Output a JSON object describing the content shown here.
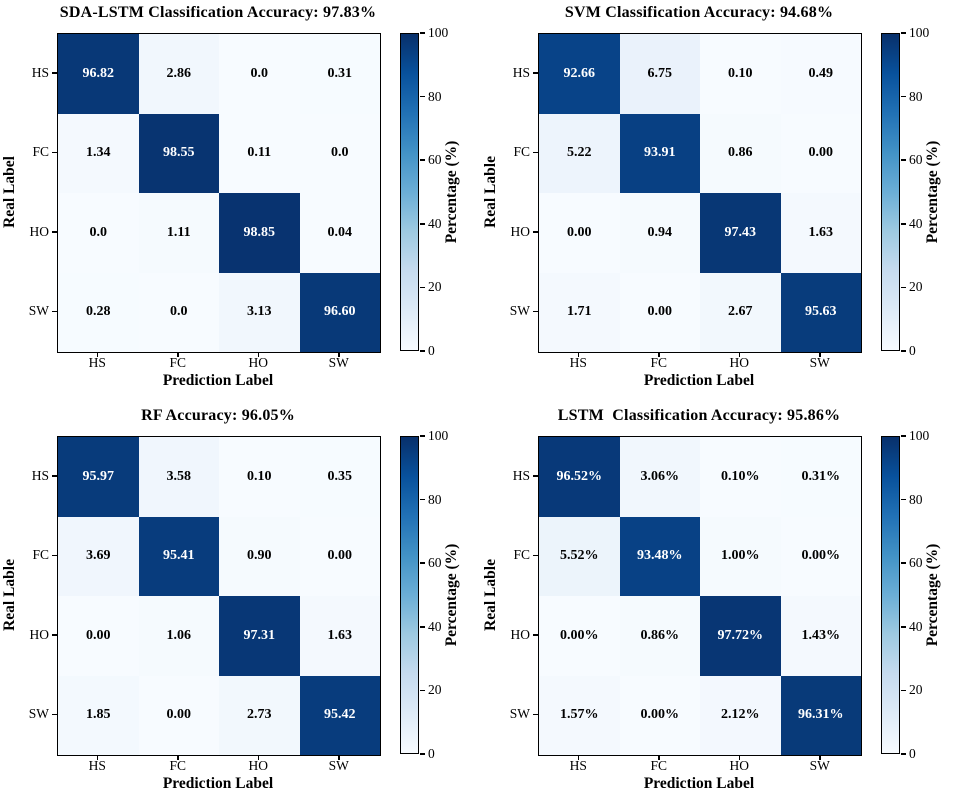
{
  "figure": {
    "xlabel": "Prediction Label",
    "categories": [
      "HS",
      "FC",
      "HO",
      "SW"
    ],
    "colorbar": {
      "label": "Percentage (%)",
      "ticks": [
        "0",
        "20",
        "40",
        "60",
        "80",
        "100"
      ],
      "min": 0,
      "max": 100,
      "colormap": "Blues",
      "color_low": "#f7fbff",
      "color_high": "#08306b"
    }
  },
  "chart_data": [
    {
      "type": "heatmap",
      "id": "sda-lstm",
      "title": "SDA-LSTM Classification Accuracy: 97.83%",
      "xlabel": "Prediction Label",
      "ylabel": "Real Label",
      "x_categories": [
        "HS",
        "FC",
        "HO",
        "SW"
      ],
      "y_categories": [
        "HS",
        "FC",
        "HO",
        "SW"
      ],
      "values": [
        [
          96.82,
          2.86,
          0.0,
          0.31
        ],
        [
          1.34,
          98.55,
          0.11,
          0.0
        ],
        [
          0.0,
          1.11,
          98.85,
          0.04
        ],
        [
          0.28,
          0.0,
          3.13,
          96.6
        ]
      ],
      "display": [
        [
          "96.82",
          "2.86",
          "0.0",
          "0.31"
        ],
        [
          "1.34",
          "98.55",
          "0.11",
          "0.0"
        ],
        [
          "0.0",
          "1.11",
          "98.85",
          "0.04"
        ],
        [
          "0.28",
          "0.0",
          "3.13",
          "96.60"
        ]
      ],
      "vmin": 0,
      "vmax": 100
    },
    {
      "type": "heatmap",
      "id": "svm",
      "title": "SVM Classification Accuracy: 94.68%",
      "xlabel": "Prediction Label",
      "ylabel": "Real Lable",
      "x_categories": [
        "HS",
        "FC",
        "HO",
        "SW"
      ],
      "y_categories": [
        "HS",
        "FC",
        "HO",
        "SW"
      ],
      "values": [
        [
          92.66,
          6.75,
          0.1,
          0.49
        ],
        [
          5.22,
          93.91,
          0.86,
          0.0
        ],
        [
          0.0,
          0.94,
          97.43,
          1.63
        ],
        [
          1.71,
          0.0,
          2.67,
          95.63
        ]
      ],
      "display": [
        [
          "92.66",
          "6.75",
          "0.10",
          "0.49"
        ],
        [
          "5.22",
          "93.91",
          "0.86",
          "0.00"
        ],
        [
          "0.00",
          "0.94",
          "97.43",
          "1.63"
        ],
        [
          "1.71",
          "0.00",
          "2.67",
          "95.63"
        ]
      ],
      "vmin": 0,
      "vmax": 100
    },
    {
      "type": "heatmap",
      "id": "rf",
      "title": "RF Accuracy: 96.05%",
      "xlabel": "Prediction Label",
      "ylabel": "Real Lable",
      "x_categories": [
        "HS",
        "FC",
        "HO",
        "SW"
      ],
      "y_categories": [
        "HS",
        "FC",
        "HO",
        "SW"
      ],
      "values": [
        [
          95.97,
          3.58,
          0.1,
          0.35
        ],
        [
          3.69,
          95.41,
          0.9,
          0.0
        ],
        [
          0.0,
          1.06,
          97.31,
          1.63
        ],
        [
          1.85,
          0.0,
          2.73,
          95.42
        ]
      ],
      "display": [
        [
          "95.97",
          "3.58",
          "0.10",
          "0.35"
        ],
        [
          "3.69",
          "95.41",
          "0.90",
          "0.00"
        ],
        [
          "0.00",
          "1.06",
          "97.31",
          "1.63"
        ],
        [
          "1.85",
          "0.00",
          "2.73",
          "95.42"
        ]
      ],
      "vmin": 0,
      "vmax": 100
    },
    {
      "type": "heatmap",
      "id": "lstm",
      "title": "LSTM  Classification Accuracy: 95.86%",
      "xlabel": "Prediction Label",
      "ylabel": "Real Lable",
      "x_categories": [
        "HS",
        "FC",
        "HO",
        "SW"
      ],
      "y_categories": [
        "HS",
        "FC",
        "HO",
        "SW"
      ],
      "values": [
        [
          96.52,
          3.06,
          0.1,
          0.31
        ],
        [
          5.52,
          93.48,
          1.0,
          0.0
        ],
        [
          0.0,
          0.86,
          97.72,
          1.43
        ],
        [
          1.57,
          0.0,
          2.12,
          96.31
        ]
      ],
      "display": [
        [
          "96.52%",
          "3.06%",
          "0.10%",
          "0.31%"
        ],
        [
          "5.52%",
          "93.48%",
          "1.00%",
          "0.00%"
        ],
        [
          "0.00%",
          "0.86%",
          "97.72%",
          "1.43%"
        ],
        [
          "1.57%",
          "0.00%",
          "2.12%",
          "96.31%"
        ]
      ],
      "vmin": 0,
      "vmax": 100
    }
  ]
}
